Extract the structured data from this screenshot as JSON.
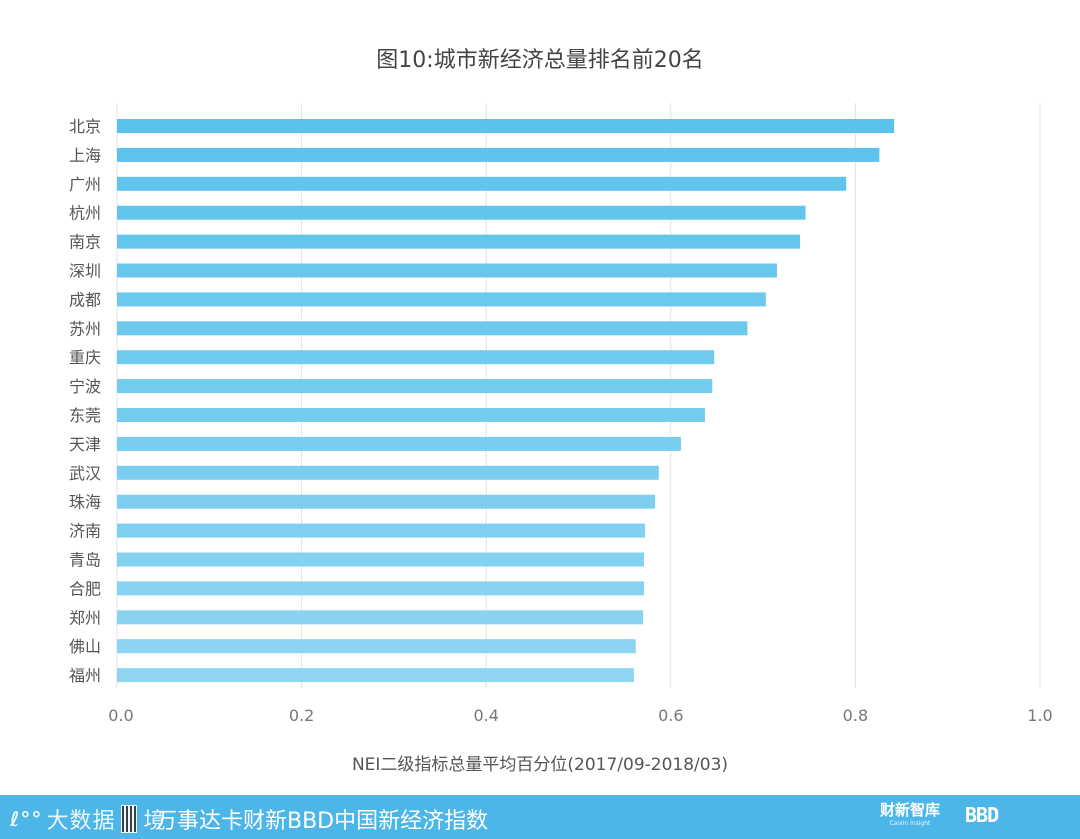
{
  "chart_data": {
    "type": "bar",
    "orientation": "horizontal",
    "title": "图10:城市新经济总量排名前20名",
    "xlabel": "NEI二级指标总量平均百分位(2017/09-2018/03)",
    "ylabel": "",
    "xlim": [
      0,
      1.0
    ],
    "xticks": [
      "0.0",
      "0.2",
      "0.4",
      "0.6",
      "0.8",
      "1.0"
    ],
    "grid": true,
    "categories": [
      "北京",
      "上海",
      "广州",
      "杭州",
      "南京",
      "深圳",
      "成都",
      "苏州",
      "重庆",
      "宁波",
      "东莞",
      "天津",
      "武汉",
      "珠海",
      "济南",
      "青岛",
      "合肥",
      "郑州",
      "佛山",
      "福州"
    ],
    "values": [
      0.842,
      0.826,
      0.79,
      0.746,
      0.74,
      0.715,
      0.703,
      0.683,
      0.647,
      0.645,
      0.637,
      0.611,
      0.587,
      0.583,
      0.572,
      0.571,
      0.571,
      0.57,
      0.562,
      0.56
    ],
    "colors": {
      "bar_dark": "#5ac2ec",
      "bar_light": "#8fd5f1",
      "grid": "#e2e2e2",
      "text": "#555555"
    }
  },
  "footer": {
    "brand": "大数据",
    "brand_suffix": "境",
    "subtitle": "万事达卡财新BBD中国新经济指数",
    "partner1": "财新智库",
    "partner1_sub": "Caixin Insight",
    "partner2": "BBD",
    "background": "#4cb6e8"
  }
}
